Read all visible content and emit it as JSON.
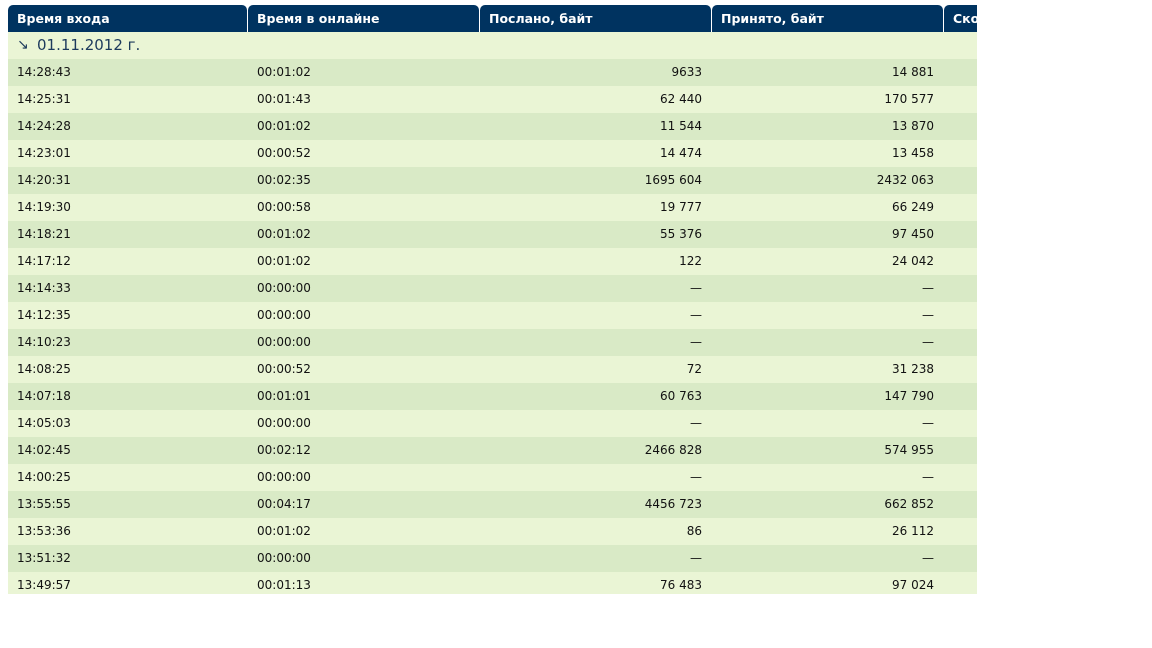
{
  "table": {
    "headers": [
      "Время входа",
      "Время в онлайне",
      "Послано, байт",
      "Принято, байт",
      "Ско"
    ],
    "group": "01.11.2012 г.",
    "rows": [
      [
        "14:28:43",
        "00:01:02",
        "9633",
        "14 881"
      ],
      [
        "14:25:31",
        "00:01:43",
        "62 440",
        "170 577"
      ],
      [
        "14:24:28",
        "00:01:02",
        "11 544",
        "13 870"
      ],
      [
        "14:23:01",
        "00:00:52",
        "14 474",
        "13 458"
      ],
      [
        "14:20:31",
        "00:02:35",
        "1695 604",
        "2432 063"
      ],
      [
        "14:19:30",
        "00:00:58",
        "19 777",
        "66 249"
      ],
      [
        "14:18:21",
        "00:01:02",
        "55 376",
        "97 450"
      ],
      [
        "14:17:12",
        "00:01:02",
        "122",
        "24 042"
      ],
      [
        "14:14:33",
        "00:00:00",
        "—",
        "—"
      ],
      [
        "14:12:35",
        "00:00:00",
        "—",
        "—"
      ],
      [
        "14:10:23",
        "00:00:00",
        "—",
        "—"
      ],
      [
        "14:08:25",
        "00:00:52",
        "72",
        "31 238"
      ],
      [
        "14:07:18",
        "00:01:01",
        "60 763",
        "147 790"
      ],
      [
        "14:05:03",
        "00:00:00",
        "—",
        "—"
      ],
      [
        "14:02:45",
        "00:02:12",
        "2466 828",
        "574 955"
      ],
      [
        "14:00:25",
        "00:00:00",
        "—",
        "—"
      ],
      [
        "13:55:55",
        "00:04:17",
        "4456 723",
        "662 852"
      ],
      [
        "13:53:36",
        "00:01:02",
        "86",
        "26 112"
      ],
      [
        "13:51:32",
        "00:00:00",
        "—",
        "—"
      ],
      [
        "13:49:57",
        "00:01:13",
        "76 483",
        "97 024"
      ]
    ]
  }
}
